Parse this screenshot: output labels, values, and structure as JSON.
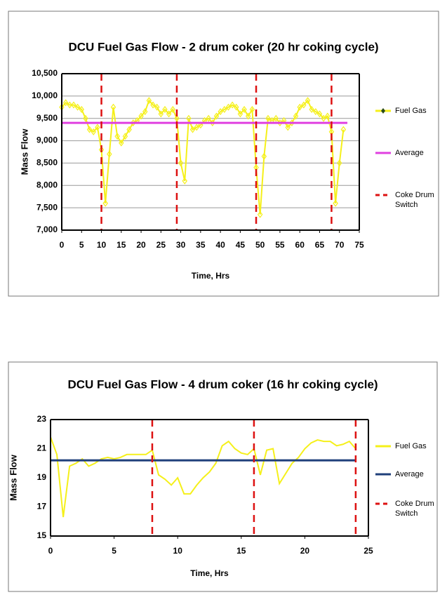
{
  "chart_data": [
    {
      "type": "line",
      "title": "DCU Fuel Gas Flow - 2 drum coker (20 hr coking cycle)",
      "xlabel": "Time, Hrs",
      "ylabel": "Mass Flow",
      "xlim": [
        0,
        75
      ],
      "xticks": [
        0,
        5,
        10,
        15,
        20,
        25,
        30,
        35,
        40,
        45,
        50,
        55,
        60,
        65,
        70,
        75
      ],
      "ylim": [
        7000,
        10500
      ],
      "yticks": [
        {
          "value": 7000,
          "label": "7,000"
        },
        {
          "value": 7500,
          "label": "7,500"
        },
        {
          "value": 8000,
          "label": "8,000"
        },
        {
          "value": 8500,
          "label": "8,500"
        },
        {
          "value": 9000,
          "label": "9,000"
        },
        {
          "value": 9500,
          "label": "9,500"
        },
        {
          "value": 10000,
          "label": "10,000"
        },
        {
          "value": 10500,
          "label": "10,500"
        }
      ],
      "grid": true,
      "series": [
        {
          "name": "Fuel Gas",
          "color": "#f5f01a",
          "marker": "diamond",
          "x": [
            0,
            1,
            2,
            3,
            4,
            5,
            6,
            7,
            8,
            9,
            10,
            11,
            12,
            13,
            14,
            15,
            16,
            17,
            18,
            19,
            20,
            21,
            22,
            23,
            24,
            25,
            26,
            27,
            28,
            29,
            30,
            31,
            32,
            33,
            34,
            35,
            36,
            37,
            38,
            39,
            40,
            41,
            42,
            43,
            44,
            45,
            46,
            47,
            48,
            49,
            50,
            51,
            52,
            53,
            54,
            55,
            56,
            57,
            58,
            59,
            60,
            61,
            62,
            63,
            64,
            65,
            66,
            67,
            68,
            69,
            70,
            71
          ],
          "values": [
            9750,
            9850,
            9800,
            9800,
            9750,
            9700,
            9500,
            9250,
            9200,
            9300,
            8800,
            7600,
            8700,
            9750,
            9100,
            8950,
            9100,
            9250,
            9400,
            9450,
            9550,
            9650,
            9900,
            9800,
            9750,
            9600,
            9700,
            9600,
            9700,
            9500,
            8500,
            8100,
            9500,
            9250,
            9300,
            9350,
            9450,
            9500,
            9400,
            9550,
            9650,
            9700,
            9750,
            9800,
            9750,
            9600,
            9700,
            9550,
            9700,
            8400,
            7350,
            8650,
            9500,
            9450,
            9500,
            9400,
            9450,
            9300,
            9400,
            9550,
            9750,
            9800,
            9900,
            9700,
            9650,
            9600,
            9500,
            9550,
            9200,
            7600,
            8500,
            9250
          ]
        },
        {
          "name": "Average",
          "color": "#e040e0",
          "x": [
            0,
            72
          ],
          "values": [
            9400,
            9400
          ]
        },
        {
          "name": "Coke Drum Switch",
          "color": "#dd1111",
          "dashed": true,
          "x": [
            10,
            29,
            49,
            68
          ]
        }
      ]
    },
    {
      "type": "line",
      "title": "DCU Fuel Gas Flow - 4 drum coker (16 hr coking cycle)",
      "xlabel": "Time, Hrs",
      "ylabel": "Mass Flow",
      "xlim": [
        0,
        25
      ],
      "xticks": [
        0,
        5,
        10,
        15,
        20,
        25
      ],
      "ylim": [
        15,
        23
      ],
      "yticks": [
        15,
        17,
        19,
        21,
        23
      ],
      "grid": false,
      "series": [
        {
          "name": "Fuel Gas",
          "color": "#f5f01a",
          "x": [
            0,
            0.5,
            1,
            1.5,
            2,
            2.5,
            3,
            3.5,
            4,
            4.5,
            5,
            5.5,
            6,
            6.5,
            7,
            7.5,
            8,
            8.5,
            9,
            9.5,
            10,
            10.5,
            11,
            11.5,
            12,
            12.5,
            13,
            13.5,
            14,
            14.5,
            15,
            15.5,
            16,
            16.5,
            17,
            17.5,
            18,
            18.5,
            19,
            19.5,
            20,
            20.5,
            21,
            21.5,
            22,
            22.5,
            23,
            23.5,
            24
          ],
          "values": [
            21.8,
            20.6,
            16.3,
            19.8,
            20.0,
            20.3,
            19.8,
            20.0,
            20.3,
            20.4,
            20.3,
            20.4,
            20.6,
            20.6,
            20.6,
            20.6,
            20.9,
            19.2,
            18.9,
            18.5,
            19.0,
            17.9,
            17.9,
            18.5,
            19.0,
            19.4,
            20.0,
            21.2,
            21.5,
            21.0,
            20.7,
            20.6,
            21.0,
            19.2,
            20.9,
            21.0,
            18.6,
            19.3,
            20.0,
            20.4,
            21.0,
            21.4,
            21.6,
            21.5,
            21.5,
            21.2,
            21.3,
            21.5,
            21.0
          ]
        },
        {
          "name": "Average",
          "color": "#1f3f7a",
          "x": [
            0,
            24
          ],
          "values": [
            20.2,
            20.2
          ]
        },
        {
          "name": "Coke Drum Switch",
          "color": "#dd1111",
          "dashed": true,
          "x": [
            8,
            16,
            24
          ]
        }
      ]
    }
  ]
}
